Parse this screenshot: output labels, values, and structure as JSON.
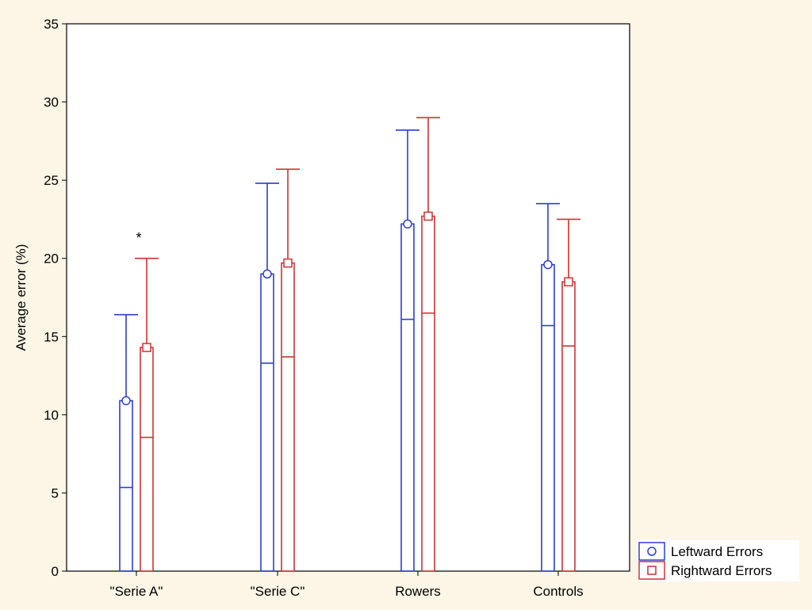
{
  "chart_data": {
    "type": "bar",
    "ylabel": "Average error (%)",
    "ylim": [
      0,
      35
    ],
    "yticks": [
      "0",
      "5",
      "10",
      "15",
      "20",
      "25",
      "30",
      "35"
    ],
    "categories": [
      "\"Serie A\"",
      "\"Serie C\"",
      "Rowers",
      "Controls"
    ],
    "series": [
      {
        "name": "Leftward Errors",
        "color": "#2b3fd1",
        "marker": "circle",
        "values": [
          10.9,
          19.0,
          22.2,
          19.6
        ],
        "lower": [
          5.35,
          13.3,
          16.1,
          15.7
        ],
        "upper": [
          16.4,
          24.8,
          28.2,
          23.5
        ]
      },
      {
        "name": "Rightward Errors",
        "color": "#cc3333",
        "marker": "square",
        "values": [
          14.3,
          19.7,
          22.7,
          18.5
        ],
        "lower": [
          8.55,
          13.7,
          16.5,
          14.4
        ],
        "upper": [
          20.0,
          25.7,
          29.0,
          22.5
        ]
      }
    ],
    "annotations": [
      {
        "text": "*",
        "category": "\"Serie A\"",
        "y": 21.3
      }
    ],
    "grid": false,
    "legend_position": "bottom-right"
  }
}
